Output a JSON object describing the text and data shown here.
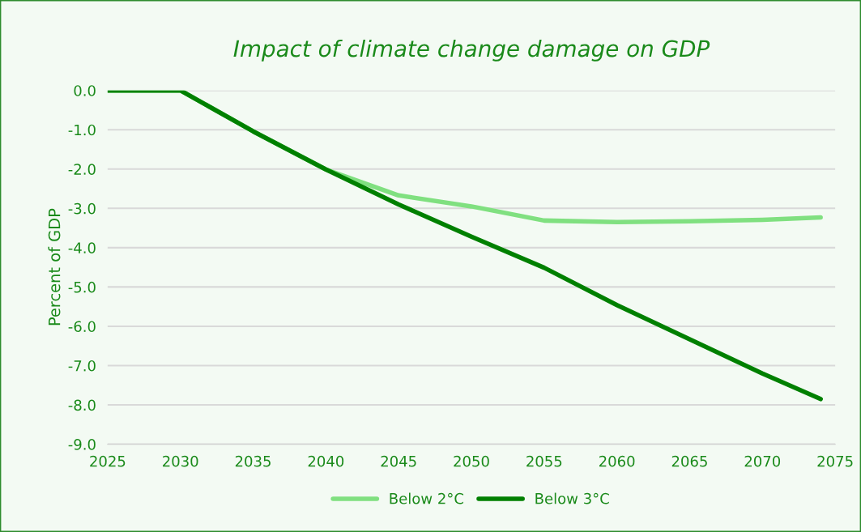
{
  "chart_data": {
    "type": "line",
    "title": "Impact of climate change damage on GDP",
    "ylabel": "Percent of GDP",
    "xlim": [
      2025,
      2075
    ],
    "xticks": [
      2025,
      2030,
      2035,
      2040,
      2045,
      2050,
      2055,
      2060,
      2065,
      2070,
      2075
    ],
    "ylim": [
      -9,
      0
    ],
    "yticks": [
      {
        "value": 0,
        "label": "0.0"
      },
      {
        "value": -1,
        "label": "-1.0"
      },
      {
        "value": -2,
        "label": "-2.0"
      },
      {
        "value": -3,
        "label": "-3.0"
      },
      {
        "value": -4,
        "label": "-4.0"
      },
      {
        "value": -5,
        "label": "-5.0"
      },
      {
        "value": -6,
        "label": "-6.0"
      },
      {
        "value": -7,
        "label": "-7.0"
      },
      {
        "value": -8,
        "label": "-8.0"
      },
      {
        "value": -9,
        "label": "-9.0"
      }
    ],
    "grid": "y",
    "legend": "bottom",
    "line_style": "solid",
    "x": [
      2025,
      2030,
      2035,
      2040,
      2045,
      2050,
      2055,
      2060,
      2065,
      2070,
      2074
    ],
    "series": [
      {
        "name": "Below 2°C",
        "color": "#80e080",
        "values": [
          0,
          0,
          -1.04,
          -2.01,
          -2.67,
          -2.95,
          -3.31,
          -3.35,
          -3.33,
          -3.29,
          -3.23
        ]
      },
      {
        "name": "Below 3°C",
        "color": "#008000",
        "values": [
          0,
          0,
          -1.04,
          -2.01,
          -2.9,
          -3.72,
          -4.51,
          -5.46,
          -6.33,
          -7.2,
          -7.85
        ]
      }
    ]
  }
}
